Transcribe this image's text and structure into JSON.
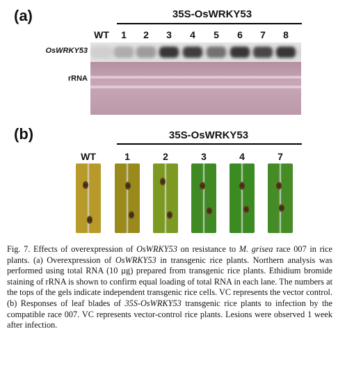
{
  "panel_a": {
    "label": "(a)",
    "construct": "35S-OsWRKY53",
    "lanes": [
      "WT",
      "1",
      "2",
      "3",
      "4",
      "5",
      "6",
      "7",
      "8"
    ],
    "row_labels": {
      "gene": "OsWRKY53",
      "rrna": "rRNA"
    },
    "band_intensity": [
      0.05,
      0.25,
      0.35,
      0.95,
      0.9,
      0.6,
      0.95,
      0.85,
      0.95
    ]
  },
  "panel_b": {
    "label": "(b)",
    "construct": "35S-OsWRKY53",
    "lanes": [
      "WT",
      "1",
      "2",
      "3",
      "4",
      "7"
    ],
    "leaf_colors": [
      "#b79a2a",
      "#9a8a1c",
      "#7c9a22",
      "#3f8a22",
      "#3c8a22",
      "#468c26"
    ]
  },
  "caption": {
    "fig": "Fig. 7.",
    "t1": " Effects of overexpression of ",
    "g1": "OsWRKY53",
    "t2": " on resistance to ",
    "sp": "M. grisea",
    "t3": " race 007 in rice plants. (a) Overexpression of ",
    "g2": "OsWRKY53",
    "t4": " in transgenic rice plants. Northern analysis was performed using total RNA (10 µg) prepared from transgenic rice plants. Ethidium bromide staining of rRNA is shown to confirm equal loading of total RNA in each lane. The numbers at the tops of the gels indicate independent transgenic rice cells. VC represents the vector control. (b) Responses of leaf blades of ",
    "g3": "35S-OsWRKY53",
    "t5": " transgenic rice plants to infection by the compatible race 007. VC represents vector-control rice plants. Lesions were observed 1 week after infection."
  }
}
